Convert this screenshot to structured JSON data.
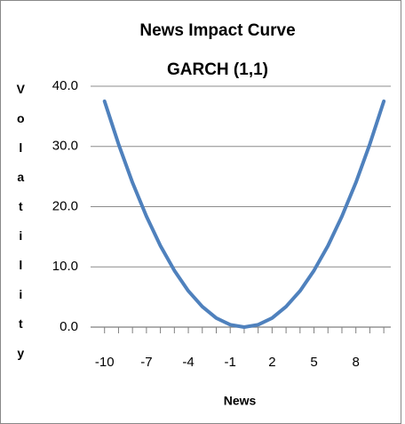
{
  "chart_data": {
    "type": "line",
    "title": "News Impact Curve",
    "subtitle": "GARCH (1,1)",
    "x_label": "News",
    "y_label": "Volatility",
    "x": [
      -10,
      -9,
      -8,
      -7,
      -6,
      -5,
      -4,
      -3,
      -2,
      -1,
      0,
      1,
      2,
      3,
      4,
      5,
      6,
      7,
      8,
      9,
      10
    ],
    "series": [
      {
        "name": "Volatility",
        "color": "#4f81bd",
        "values": [
          37.5,
          30.4,
          24.0,
          18.4,
          13.5,
          9.4,
          6.0,
          3.4,
          1.5,
          0.4,
          0,
          0.4,
          1.5,
          3.4,
          6.0,
          9.4,
          13.5,
          18.4,
          24.0,
          30.4,
          37.5
        ]
      }
    ],
    "xlim": [
      -11,
      10.5
    ],
    "xticks": [
      -10,
      -7,
      -4,
      -1,
      2,
      5,
      8
    ],
    "ylim": [
      0,
      40
    ],
    "yticks": [
      {
        "value": 0,
        "label": "0.0"
      },
      {
        "value": 10,
        "label": "10.0"
      },
      {
        "value": 20,
        "label": "20.0"
      },
      {
        "value": 30,
        "label": "30.0"
      },
      {
        "value": 40,
        "label": "40.0"
      }
    ],
    "grid": true
  }
}
